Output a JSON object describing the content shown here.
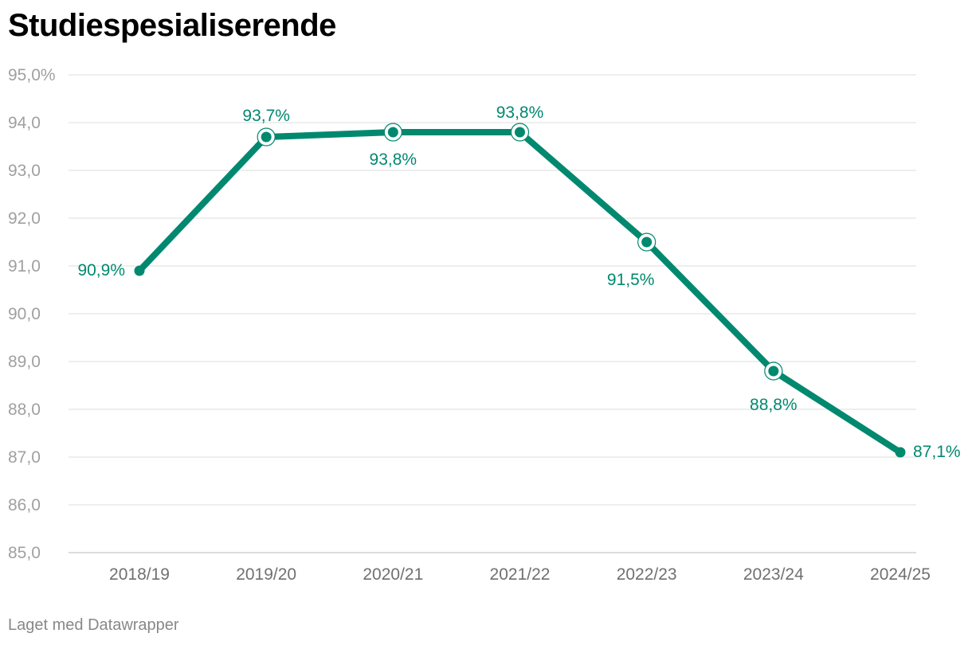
{
  "title": "Studiespesialiserende",
  "footer": "Laget med Datawrapper",
  "colors": {
    "line": "#00896f",
    "grid": "#e3e3e3",
    "axis": "#c8c8c8"
  },
  "chart_data": {
    "type": "line",
    "title": "Studiespesialiserende",
    "categories": [
      "2018/19",
      "2019/20",
      "2020/21",
      "2021/22",
      "2022/23",
      "2023/24",
      "2024/25"
    ],
    "values": [
      90.9,
      93.7,
      93.8,
      93.8,
      91.5,
      88.8,
      87.1
    ],
    "data_labels": [
      "90,9%",
      "93,7%",
      "93,8%",
      "93,8%",
      "91,5%",
      "88,8%",
      "87,1%"
    ],
    "ylim": [
      85,
      95
    ],
    "y_ticks": [
      85,
      86,
      87,
      88,
      89,
      90,
      91,
      92,
      93,
      94,
      95
    ],
    "y_tick_labels": [
      "85,0",
      "86,0",
      "87,0",
      "88,0",
      "89,0",
      "90,0",
      "91,0",
      "92,0",
      "93,0",
      "94,0",
      "95,0%"
    ],
    "grid": true,
    "legend": "none"
  }
}
